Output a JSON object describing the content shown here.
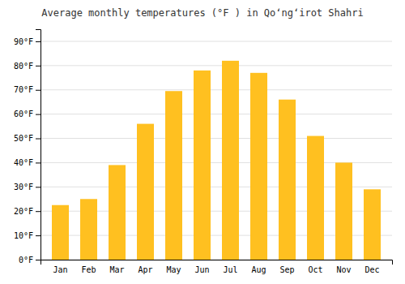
{
  "chart_data": {
    "type": "bar",
    "title": "Average monthly temperatures (°F ) in Qoʻngʻirot Shahri",
    "categories": [
      "Jan",
      "Feb",
      "Mar",
      "Apr",
      "May",
      "Jun",
      "Jul",
      "Aug",
      "Sep",
      "Oct",
      "Nov",
      "Dec"
    ],
    "values": [
      22.5,
      25.0,
      39.0,
      56.0,
      69.5,
      78.0,
      82.0,
      77.0,
      66.0,
      51.0,
      40.0,
      29.0
    ],
    "color": "#FFC020",
    "ylim": [
      0,
      95
    ],
    "yticks": [
      {
        "value": 0,
        "label": "0°F"
      },
      {
        "value": 10,
        "label": "10°F"
      },
      {
        "value": 20,
        "label": "20°F"
      },
      {
        "value": 30,
        "label": "30°F"
      },
      {
        "value": 40,
        "label": "40°F"
      },
      {
        "value": 50,
        "label": "50°F"
      },
      {
        "value": 60,
        "label": "60°F"
      },
      {
        "value": 70,
        "label": "70°F"
      },
      {
        "value": 80,
        "label": "80°F"
      },
      {
        "value": 90,
        "label": "90°F"
      }
    ],
    "grid": true
  }
}
